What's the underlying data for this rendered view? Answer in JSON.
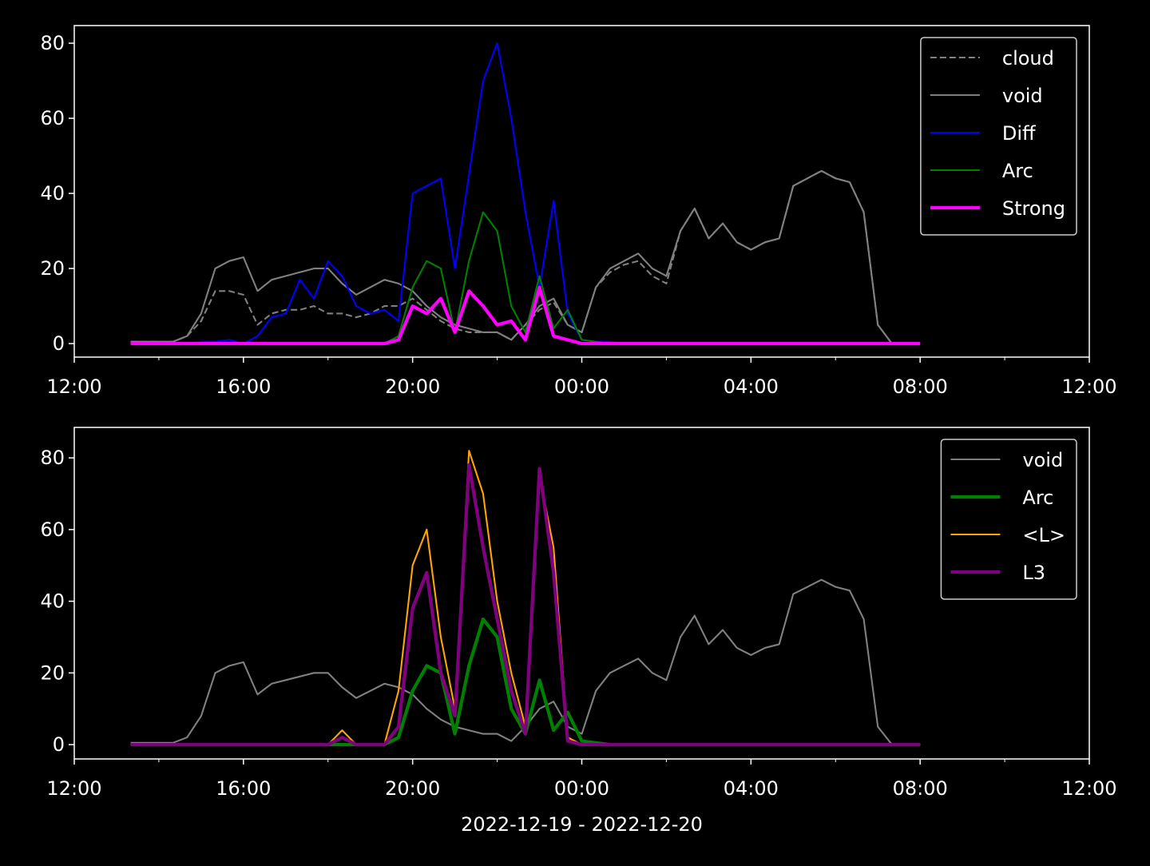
{
  "chart_data": [
    {
      "type": "line",
      "legend": "upper right",
      "x": [
        "2022-12-19T13:20",
        "2022-12-19T13:40",
        "2022-12-19T14:00",
        "2022-12-19T14:20",
        "2022-12-19T14:40",
        "2022-12-19T15:00",
        "2022-12-19T15:20",
        "2022-12-19T15:40",
        "2022-12-19T16:00",
        "2022-12-19T16:20",
        "2022-12-19T16:40",
        "2022-12-19T17:00",
        "2022-12-19T17:20",
        "2022-12-19T17:40",
        "2022-12-19T18:00",
        "2022-12-19T18:20",
        "2022-12-19T18:40",
        "2022-12-19T19:00",
        "2022-12-19T19:20",
        "2022-12-19T19:40",
        "2022-12-19T20:00",
        "2022-12-19T20:20",
        "2022-12-19T20:40",
        "2022-12-19T21:00",
        "2022-12-19T21:20",
        "2022-12-19T21:40",
        "2022-12-19T22:00",
        "2022-12-19T22:20",
        "2022-12-19T22:40",
        "2022-12-19T23:00",
        "2022-12-19T23:20",
        "2022-12-19T23:40",
        "2022-12-20T00:00",
        "2022-12-20T00:20",
        "2022-12-20T00:40",
        "2022-12-20T01:00",
        "2022-12-20T01:20",
        "2022-12-20T01:40",
        "2022-12-20T02:00",
        "2022-12-20T02:20",
        "2022-12-20T02:40",
        "2022-12-20T03:00",
        "2022-12-20T03:20",
        "2022-12-20T03:40",
        "2022-12-20T04:00",
        "2022-12-20T04:20",
        "2022-12-20T04:40",
        "2022-12-20T05:00",
        "2022-12-20T05:20",
        "2022-12-20T05:40",
        "2022-12-20T06:00",
        "2022-12-20T06:20",
        "2022-12-20T06:40",
        "2022-12-20T07:00",
        "2022-12-20T07:20",
        "2022-12-20T07:40",
        "2022-12-20T08:00"
      ],
      "xlim": [
        "2022-12-19T12:00",
        "2022-12-20T12:00"
      ],
      "xticks": [
        {
          "value": "2022-12-19T12:00",
          "label": "12:00"
        },
        {
          "value": "2022-12-19T16:00",
          "label": "16:00"
        },
        {
          "value": "2022-12-19T20:00",
          "label": "20:00"
        },
        {
          "value": "2022-12-20T00:00",
          "label": "00:00"
        },
        {
          "value": "2022-12-20T04:00",
          "label": "04:00"
        },
        {
          "value": "2022-12-20T08:00",
          "label": "08:00"
        },
        {
          "value": "2022-12-20T12:00",
          "label": "12:00"
        }
      ],
      "xminorticks": [
        "2022-12-19T14:00",
        "2022-12-19T18:00",
        "2022-12-19T22:00",
        "2022-12-20T02:00",
        "2022-12-20T06:00",
        "2022-12-20T10:00"
      ],
      "ylim": [
        -3.6,
        84.7
      ],
      "yticks": [
        0,
        20,
        40,
        60,
        80
      ],
      "series": [
        {
          "name": "cloud",
          "color": "#808080",
          "linewidth": 1.5,
          "linestyle": "dashed",
          "values": [
            0.5,
            0.5,
            0.5,
            0.5,
            2,
            6,
            14,
            14,
            13,
            5,
            8,
            9,
            9,
            10,
            8,
            8,
            7,
            8,
            10,
            10,
            12,
            9,
            6,
            4,
            3,
            3,
            3,
            1,
            5,
            9,
            11,
            5,
            3,
            15,
            19,
            21,
            22,
            18,
            16,
            30,
            36,
            28,
            32,
            27,
            25,
            27,
            28,
            42,
            44,
            46,
            44,
            43,
            35,
            5,
            0,
            0,
            0
          ]
        },
        {
          "name": "void",
          "color": "#808080",
          "linewidth": 1.5,
          "linestyle": "solid",
          "values": [
            0.5,
            0.5,
            0.5,
            0.5,
            2,
            8,
            20,
            22,
            23,
            14,
            17,
            18,
            19,
            20,
            20,
            16,
            13,
            15,
            17,
            16,
            14,
            10,
            7,
            5,
            4,
            3,
            3,
            1,
            5,
            10,
            12,
            5,
            3,
            15,
            20,
            22,
            24,
            20,
            18,
            30,
            36,
            28,
            32,
            27,
            25,
            27,
            28,
            42,
            44,
            46,
            44,
            43,
            35,
            5,
            0,
            0,
            0
          ]
        },
        {
          "name": "Diff",
          "color": "#0000ff",
          "linewidth": 1.5,
          "linestyle": "solid",
          "values": [
            0,
            0,
            0,
            0,
            0,
            0.5,
            0.5,
            1,
            0,
            2,
            7,
            8,
            17,
            12,
            22,
            18,
            10,
            8,
            9,
            6,
            40,
            42,
            44,
            20,
            45,
            70,
            80,
            60,
            35,
            15,
            38,
            8,
            1,
            0.5,
            0.5,
            0,
            0,
            0,
            0,
            0,
            0,
            0,
            0,
            0,
            0,
            0,
            0,
            0,
            0,
            0,
            0,
            0,
            0,
            0,
            0,
            0,
            0
          ]
        },
        {
          "name": "Arc",
          "color": "#008000",
          "linewidth": 1.5,
          "linestyle": "solid",
          "values": [
            0,
            0,
            0,
            0,
            0,
            0,
            0,
            0,
            0,
            0,
            0,
            0,
            0,
            0,
            0,
            0,
            0,
            0,
            0,
            2,
            15,
            22,
            20,
            3,
            22,
            35,
            30,
            10,
            3,
            18,
            4,
            9,
            1,
            0.5,
            0,
            0,
            0,
            0,
            0,
            0,
            0,
            0,
            0,
            0,
            0,
            0,
            0,
            0,
            0,
            0,
            0,
            0,
            0,
            0,
            0,
            0,
            0
          ]
        },
        {
          "name": "Strong",
          "color": "#ff00ff",
          "linewidth": 3,
          "linestyle": "solid",
          "values": [
            0,
            0,
            0,
            0,
            0,
            0,
            0,
            0,
            0,
            0,
            0,
            0,
            0,
            0,
            0,
            0,
            0,
            0,
            0,
            1,
            10,
            8,
            12,
            3,
            14,
            10,
            5,
            6,
            1,
            15,
            2,
            1,
            0,
            0,
            0,
            0,
            0,
            0,
            0,
            0,
            0,
            0,
            0,
            0,
            0,
            0,
            0,
            0,
            0,
            0,
            0,
            0,
            0,
            0,
            0,
            0,
            0
          ]
        }
      ]
    },
    {
      "type": "line",
      "legend": "upper right",
      "xlabel": "2022-12-19 - 2022-12-20",
      "x": [
        "2022-12-19T13:20",
        "2022-12-19T13:40",
        "2022-12-19T14:00",
        "2022-12-19T14:20",
        "2022-12-19T14:40",
        "2022-12-19T15:00",
        "2022-12-19T15:20",
        "2022-12-19T15:40",
        "2022-12-19T16:00",
        "2022-12-19T16:20",
        "2022-12-19T16:40",
        "2022-12-19T17:00",
        "2022-12-19T17:20",
        "2022-12-19T17:40",
        "2022-12-19T18:00",
        "2022-12-19T18:20",
        "2022-12-19T18:40",
        "2022-12-19T19:00",
        "2022-12-19T19:20",
        "2022-12-19T19:40",
        "2022-12-19T20:00",
        "2022-12-19T20:20",
        "2022-12-19T20:40",
        "2022-12-19T21:00",
        "2022-12-19T21:20",
        "2022-12-19T21:40",
        "2022-12-19T22:00",
        "2022-12-19T22:20",
        "2022-12-19T22:40",
        "2022-12-19T23:00",
        "2022-12-19T23:20",
        "2022-12-19T23:40",
        "2022-12-20T00:00",
        "2022-12-20T00:20",
        "2022-12-20T00:40",
        "2022-12-20T01:00",
        "2022-12-20T01:20",
        "2022-12-20T01:40",
        "2022-12-20T02:00",
        "2022-12-20T02:20",
        "2022-12-20T02:40",
        "2022-12-20T03:00",
        "2022-12-20T03:20",
        "2022-12-20T03:40",
        "2022-12-20T04:00",
        "2022-12-20T04:20",
        "2022-12-20T04:40",
        "2022-12-20T05:00",
        "2022-12-20T05:20",
        "2022-12-20T05:40",
        "2022-12-20T06:00",
        "2022-12-20T06:20",
        "2022-12-20T06:40",
        "2022-12-20T07:00",
        "2022-12-20T07:20",
        "2022-12-20T07:40",
        "2022-12-20T08:00"
      ],
      "xlim": [
        "2022-12-19T12:00",
        "2022-12-20T12:00"
      ],
      "xticks": [
        {
          "value": "2022-12-19T12:00",
          "label": "12:00"
        },
        {
          "value": "2022-12-19T16:00",
          "label": "16:00"
        },
        {
          "value": "2022-12-19T20:00",
          "label": "20:00"
        },
        {
          "value": "2022-12-20T00:00",
          "label": "00:00"
        },
        {
          "value": "2022-12-20T04:00",
          "label": "04:00"
        },
        {
          "value": "2022-12-20T08:00",
          "label": "08:00"
        },
        {
          "value": "2022-12-20T12:00",
          "label": "12:00"
        }
      ],
      "xminorticks": [
        "2022-12-19T14:00",
        "2022-12-19T18:00",
        "2022-12-19T22:00",
        "2022-12-20T02:00",
        "2022-12-20T06:00",
        "2022-12-20T10:00"
      ],
      "ylim": [
        -4.0,
        88.5
      ],
      "yticks": [
        0,
        20,
        40,
        60,
        80
      ],
      "series": [
        {
          "name": "void",
          "color": "#808080",
          "linewidth": 1.5,
          "linestyle": "solid",
          "values": [
            0.5,
            0.5,
            0.5,
            0.5,
            2,
            8,
            20,
            22,
            23,
            14,
            17,
            18,
            19,
            20,
            20,
            16,
            13,
            15,
            17,
            16,
            14,
            10,
            7,
            5,
            4,
            3,
            3,
            1,
            5,
            10,
            12,
            5,
            3,
            15,
            20,
            22,
            24,
            20,
            18,
            30,
            36,
            28,
            32,
            27,
            25,
            27,
            28,
            42,
            44,
            46,
            44,
            43,
            35,
            5,
            0,
            0,
            0
          ]
        },
        {
          "name": "Arc",
          "color": "#008000",
          "linewidth": 3,
          "linestyle": "solid",
          "values": [
            0,
            0,
            0,
            0,
            0,
            0,
            0,
            0,
            0,
            0,
            0,
            0,
            0,
            0,
            0,
            0,
            0,
            0,
            0,
            2,
            15,
            22,
            20,
            3,
            22,
            35,
            30,
            10,
            3,
            18,
            4,
            9,
            1,
            0.5,
            0,
            0,
            0,
            0,
            0,
            0,
            0,
            0,
            0,
            0,
            0,
            0,
            0,
            0,
            0,
            0,
            0,
            0,
            0,
            0,
            0,
            0,
            0
          ]
        },
        {
          "name": "<L>",
          "color": "#ffa500",
          "linewidth": 1.5,
          "linestyle": "solid",
          "values": [
            0,
            0,
            0,
            0,
            0,
            0,
            0,
            0,
            0,
            0,
            0,
            0,
            0,
            0,
            0,
            4,
            0,
            0,
            0,
            15,
            50,
            60,
            30,
            10,
            82,
            70,
            40,
            20,
            5,
            75,
            55,
            2,
            0,
            0,
            0,
            0,
            0,
            0,
            0,
            0,
            0,
            0,
            0,
            0,
            0,
            0,
            0,
            0,
            0,
            0,
            0,
            0,
            0,
            0,
            0,
            0,
            0
          ]
        },
        {
          "name": "L3",
          "color": "#800080",
          "linewidth": 3,
          "linestyle": "solid",
          "values": [
            0,
            0,
            0,
            0,
            0,
            0,
            0,
            0,
            0,
            0,
            0,
            0,
            0,
            0,
            0,
            2,
            0,
            0,
            0,
            5,
            38,
            48,
            20,
            8,
            78,
            55,
            35,
            15,
            3,
            77,
            48,
            1,
            0,
            0,
            0,
            0,
            0,
            0,
            0,
            0,
            0,
            0,
            0,
            0,
            0,
            0,
            0,
            0,
            0,
            0,
            0,
            0,
            0,
            0,
            0,
            0,
            0
          ]
        }
      ]
    }
  ]
}
